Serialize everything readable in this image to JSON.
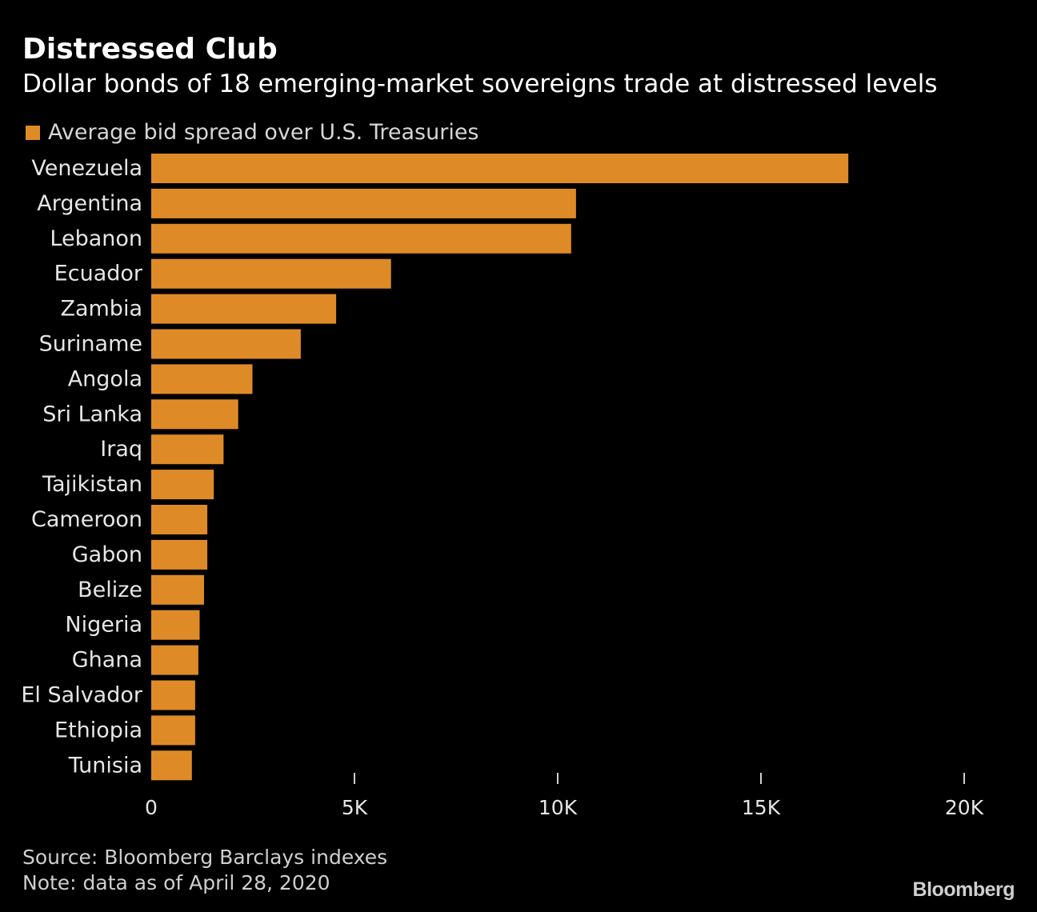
{
  "header": {
    "title": "Distressed Club",
    "subtitle": "Dollar bonds of 18 emerging-market sovereigns trade at distressed levels"
  },
  "legend": {
    "label": "Average bid spread over U.S. Treasuries"
  },
  "footer": {
    "source": "Source: Bloomberg Barclays indexes",
    "note": "Note: data as of April 28, 2020",
    "logo": "Bloomberg"
  },
  "colors": {
    "bar": "#de8b27",
    "background": "#000000",
    "text": "#e6e6e6"
  },
  "chart_data": {
    "type": "bar",
    "orientation": "horizontal",
    "categories": [
      "Venezuela",
      "Argentina",
      "Lebanon",
      "Ecuador",
      "Zambia",
      "Suriname",
      "Angola",
      "Sri Lanka",
      "Iraq",
      "Tajikistan",
      "Cameroon",
      "Gabon",
      "Belize",
      "Nigeria",
      "Ghana",
      "El Salvador",
      "Ethiopia",
      "Tunisia"
    ],
    "series": [
      {
        "name": "Average bid spread over U.S. Treasuries",
        "values": [
          17150,
          10450,
          10330,
          5900,
          4550,
          3680,
          2490,
          2140,
          1780,
          1540,
          1380,
          1380,
          1300,
          1190,
          1160,
          1080,
          1080,
          1000
        ]
      }
    ],
    "xlim": [
      0,
      20000
    ],
    "xticks": [
      0,
      5000,
      10000,
      15000,
      20000
    ],
    "xtick_labels": [
      "0",
      "5K",
      "10K",
      "15K",
      "20K"
    ],
    "legend_position": "top-left",
    "grid": false
  }
}
